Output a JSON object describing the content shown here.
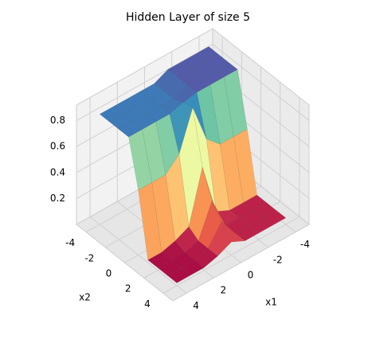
{
  "chart_data": {
    "type": "surface3d",
    "title": "Hidden Layer of size 5",
    "x_label": "x1",
    "y_label": "x2",
    "colormap": "Spectral",
    "x": [
      -4,
      -3,
      -2,
      -1,
      0,
      1,
      2,
      3,
      4
    ],
    "y": [
      -4,
      -3,
      -2,
      -1,
      0,
      1,
      2,
      3,
      4
    ],
    "z": [
      [
        0.9,
        0.9,
        0.9,
        0.9,
        0.85,
        0.85,
        0.85,
        0.85,
        0.85
      ],
      [
        0.9,
        0.9,
        0.9,
        0.9,
        0.85,
        0.85,
        0.85,
        0.85,
        0.85
      ],
      [
        0.9,
        0.9,
        0.9,
        0.9,
        0.85,
        0.85,
        0.85,
        0.85,
        0.85
      ],
      [
        0.9,
        0.9,
        0.9,
        0.9,
        0.88,
        0.85,
        0.85,
        0.85,
        0.85
      ],
      [
        0.5,
        0.5,
        0.5,
        0.6,
        0.9,
        0.6,
        0.5,
        0.5,
        0.5
      ],
      [
        0.05,
        0.05,
        0.05,
        0.1,
        0.5,
        0.1,
        0.05,
        0.02,
        0.02
      ],
      [
        0.05,
        0.05,
        0.05,
        0.05,
        0.3,
        0.05,
        0.02,
        0.02,
        0.02
      ],
      [
        0.05,
        0.05,
        0.05,
        0.05,
        0.2,
        0.05,
        0.02,
        0.02,
        0.02
      ],
      [
        0.05,
        0.05,
        0.05,
        0.05,
        0.1,
        0.05,
        0.02,
        0.02,
        0.02
      ]
    ],
    "xlim": [
      -5,
      5
    ],
    "ylim": [
      -5,
      5
    ],
    "zlim": [
      0,
      0.92
    ],
    "xticks": [
      -4,
      -2,
      0,
      2,
      4
    ],
    "yticks": [
      -4,
      -2,
      0,
      2,
      4
    ],
    "zticks": [
      0.2,
      0.4,
      0.6,
      0.8
    ],
    "grid": true
  }
}
